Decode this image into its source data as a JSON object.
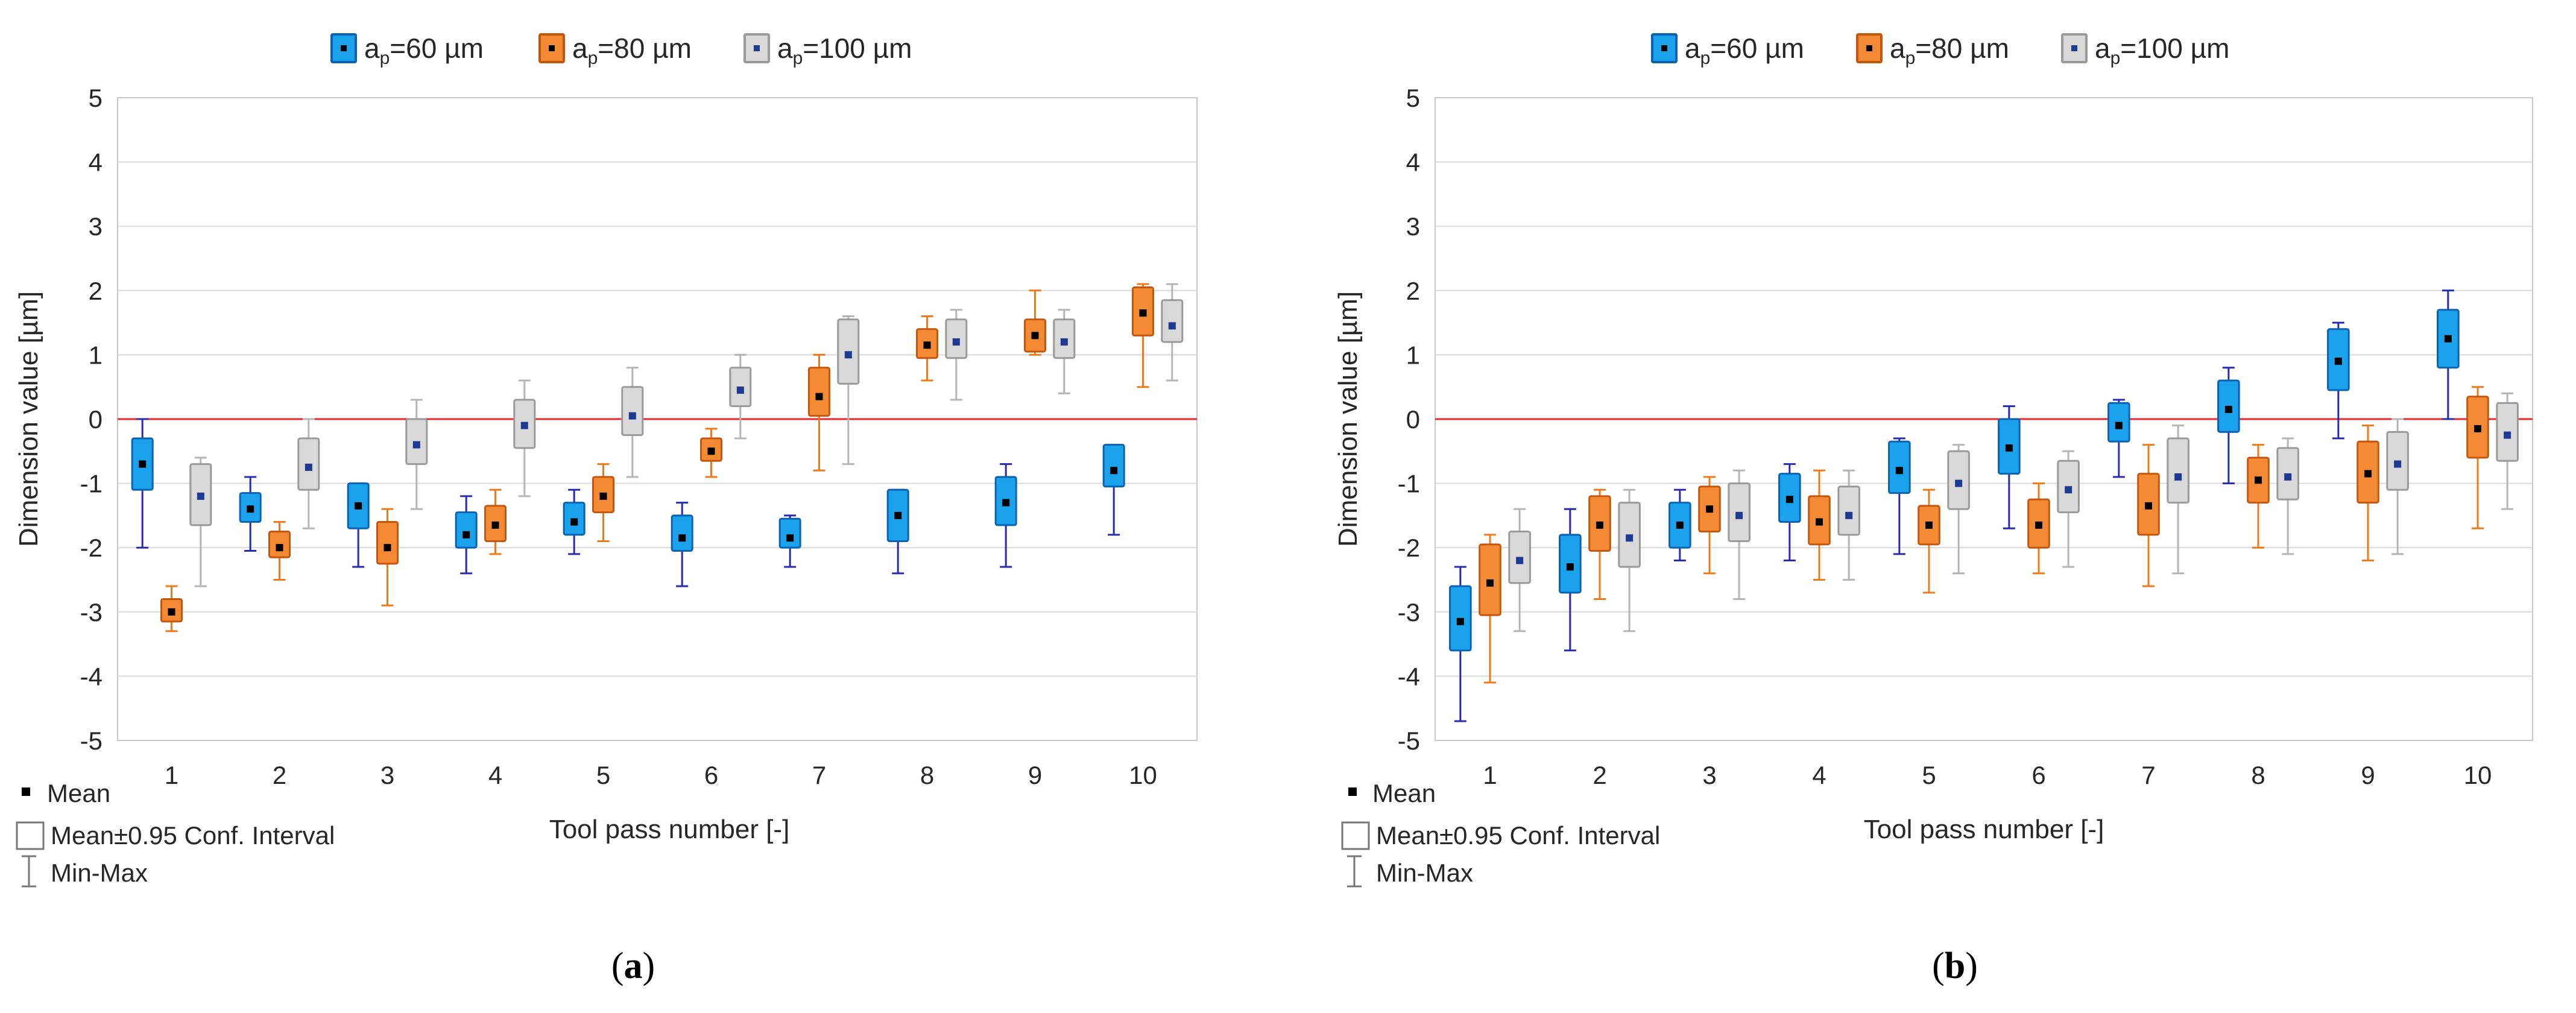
{
  "legend": {
    "series": [
      {
        "label_a": "a",
        "label_sub": "p",
        "label_rest": "=60 µm"
      },
      {
        "label_a": "a",
        "label_sub": "p",
        "label_rest": "=80 µm"
      },
      {
        "label_a": "a",
        "label_sub": "p",
        "label_rest": "=100 µm"
      }
    ]
  },
  "key": {
    "mean": "Mean",
    "conf": "Mean±0.95 Conf. Interval",
    "minmax": "Min-Max"
  },
  "colors": {
    "s60_fill": "#1aa3ec",
    "s60_edge": "#0b62b0",
    "s60_whisker": "#2a2ab0",
    "s80_fill": "#f58a34",
    "s80_edge": "#c4560e",
    "s80_whisker": "#f07a1a",
    "s100_fill": "#d9d9d9",
    "s100_edge": "#9a9a9a",
    "s100_whisker": "#b5b5b5",
    "reference_line": "#e8262c",
    "grid": "#d9d9d9",
    "mean_dot": "#000000"
  },
  "chart_data": [
    {
      "type": "box",
      "caption_open": "(",
      "caption_letter": "a",
      "caption_close": ")",
      "xlabel": "Tool pass number [-]",
      "ylabel": "Dimension value [µm]",
      "ylim": [
        -5,
        5
      ],
      "yticks": [
        "-5",
        "-4",
        "-3",
        "-2",
        "-1",
        "0",
        "1",
        "2",
        "3",
        "4",
        "5"
      ],
      "categories": [
        "1",
        "2",
        "3",
        "4",
        "5",
        "6",
        "7",
        "8",
        "9",
        "10"
      ],
      "reference_line": 0,
      "series": [
        {
          "name": "ap=60 µm",
          "mean": [
            -0.7,
            -1.4,
            -1.35,
            -1.8,
            -1.6,
            -1.85,
            -1.85,
            -1.5,
            -1.3,
            -0.8
          ],
          "ci_low": [
            -1.1,
            -1.6,
            -1.7,
            -2.0,
            -1.8,
            -2.05,
            -2.0,
            -1.9,
            -1.65,
            -1.05
          ],
          "ci_high": [
            -0.3,
            -1.15,
            -1.0,
            -1.45,
            -1.3,
            -1.5,
            -1.55,
            -1.1,
            -0.9,
            -0.4
          ],
          "min": [
            -2.0,
            -2.05,
            -2.3,
            -2.4,
            -2.1,
            -2.6,
            -2.3,
            -2.4,
            -2.3,
            -1.8
          ],
          "max": [
            0.0,
            -0.9,
            -1.0,
            -1.2,
            -1.1,
            -1.3,
            -1.5,
            -1.1,
            -0.7,
            -0.4
          ]
        },
        {
          "name": "ap=80 µm",
          "mean": [
            -3.0,
            -2.0,
            -2.0,
            -1.65,
            -1.2,
            -0.5,
            0.35,
            1.15,
            1.3,
            1.65
          ],
          "ci_low": [
            -3.15,
            -2.15,
            -2.25,
            -1.9,
            -1.45,
            -0.65,
            0.05,
            0.95,
            1.05,
            1.3
          ],
          "ci_high": [
            -2.8,
            -1.75,
            -1.6,
            -1.35,
            -0.9,
            -0.3,
            0.8,
            1.4,
            1.55,
            2.05
          ],
          "min": [
            -3.3,
            -2.5,
            -2.9,
            -2.1,
            -1.9,
            -0.9,
            -0.8,
            0.6,
            1.0,
            0.5
          ],
          "max": [
            -2.6,
            -1.6,
            -1.4,
            -1.1,
            -0.7,
            -0.15,
            1.0,
            1.6,
            2.0,
            2.1
          ]
        },
        {
          "name": "ap=100 µm",
          "mean": [
            -1.2,
            -0.75,
            -0.4,
            -0.1,
            0.05,
            0.45,
            1.0,
            1.2,
            1.2,
            1.45
          ],
          "ci_low": [
            -1.65,
            -1.1,
            -0.7,
            -0.45,
            -0.25,
            0.2,
            0.55,
            0.95,
            0.95,
            1.2
          ],
          "ci_high": [
            -0.7,
            -0.3,
            0.0,
            0.3,
            0.5,
            0.8,
            1.55,
            1.55,
            1.55,
            1.85
          ],
          "min": [
            -2.6,
            -1.7,
            -1.4,
            -1.2,
            -0.9,
            -0.3,
            -0.7,
            0.3,
            0.4,
            0.6
          ],
          "max": [
            -0.6,
            0.0,
            0.3,
            0.6,
            0.8,
            1.0,
            1.6,
            1.7,
            1.7,
            2.1
          ]
        }
      ]
    },
    {
      "type": "box",
      "caption_open": "(",
      "caption_letter": "b",
      "caption_close": ")",
      "xlabel": "Tool pass number [-]",
      "ylabel": "Dimension value [µm]",
      "ylim": [
        -5,
        5
      ],
      "yticks": [
        "-5",
        "-4",
        "-3",
        "-2",
        "-1",
        "0",
        "1",
        "2",
        "3",
        "4",
        "5"
      ],
      "categories": [
        "1",
        "2",
        "3",
        "4",
        "5",
        "6",
        "7",
        "8",
        "9",
        "10"
      ],
      "reference_line": 0,
      "series": [
        {
          "name": "ap=60 µm",
          "mean": [
            -3.15,
            -2.3,
            -1.65,
            -1.25,
            -0.8,
            -0.45,
            -0.1,
            0.15,
            0.9,
            1.25
          ],
          "ci_low": [
            -3.6,
            -2.7,
            -2.0,
            -1.6,
            -1.15,
            -0.85,
            -0.35,
            -0.2,
            0.45,
            0.8
          ],
          "ci_high": [
            -2.6,
            -1.8,
            -1.3,
            -0.85,
            -0.35,
            0.0,
            0.25,
            0.6,
            1.4,
            1.7
          ],
          "min": [
            -4.7,
            -3.6,
            -2.2,
            -2.2,
            -2.1,
            -1.7,
            -0.9,
            -1.0,
            -0.3,
            0.0
          ],
          "max": [
            -2.3,
            -1.4,
            -1.1,
            -0.7,
            -0.3,
            0.2,
            0.3,
            0.8,
            1.5,
            2.0
          ]
        },
        {
          "name": "ap=80 µm",
          "mean": [
            -2.55,
            -1.65,
            -1.4,
            -1.6,
            -1.65,
            -1.65,
            -1.35,
            -0.95,
            -0.85,
            -0.15
          ],
          "ci_low": [
            -3.05,
            -2.05,
            -1.75,
            -1.95,
            -1.95,
            -2.0,
            -1.8,
            -1.3,
            -1.3,
            -0.6
          ],
          "ci_high": [
            -1.95,
            -1.2,
            -1.05,
            -1.2,
            -1.35,
            -1.25,
            -0.85,
            -0.6,
            -0.35,
            0.35
          ],
          "min": [
            -4.1,
            -2.8,
            -2.4,
            -2.5,
            -2.7,
            -2.4,
            -2.6,
            -2.0,
            -2.2,
            -1.7
          ],
          "max": [
            -1.8,
            -1.1,
            -0.9,
            -0.8,
            -1.1,
            -1.0,
            -0.4,
            -0.4,
            -0.1,
            0.5
          ]
        },
        {
          "name": "ap=100 µm",
          "mean": [
            -2.2,
            -1.85,
            -1.5,
            -1.5,
            -1.0,
            -1.1,
            -0.9,
            -0.9,
            -0.7,
            -0.25
          ],
          "ci_low": [
            -2.55,
            -2.3,
            -1.9,
            -1.8,
            -1.4,
            -1.45,
            -1.3,
            -1.25,
            -1.1,
            -0.65
          ],
          "ci_high": [
            -1.75,
            -1.3,
            -1.0,
            -1.05,
            -0.5,
            -0.65,
            -0.3,
            -0.45,
            -0.2,
            0.25
          ],
          "min": [
            -3.3,
            -3.3,
            -2.8,
            -2.5,
            -2.4,
            -2.3,
            -2.4,
            -2.1,
            -2.1,
            -1.4
          ],
          "max": [
            -1.4,
            -1.1,
            -0.8,
            -0.8,
            -0.4,
            -0.5,
            -0.1,
            -0.3,
            0.0,
            0.4
          ]
        }
      ]
    }
  ]
}
